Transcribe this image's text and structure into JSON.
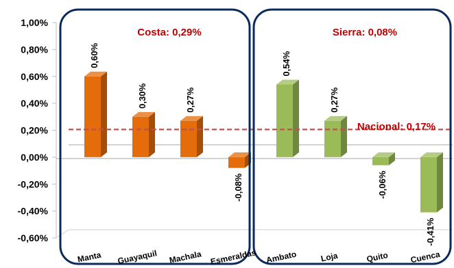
{
  "chart_data": {
    "type": "bar",
    "categories": [
      "Manta",
      "Guayaquil",
      "Machala",
      "Esmeraldas",
      "Ambato",
      "Loja",
      "Quito",
      "Cuenca"
    ],
    "values": [
      0.6,
      0.3,
      0.27,
      -0.08,
      0.54,
      0.27,
      -0.06,
      -0.41
    ],
    "value_labels": [
      "0,60%",
      "0,30%",
      "0,27%",
      "-0,08%",
      "0,54%",
      "0,27%",
      "-0,06%",
      "-0,41%"
    ],
    "y_ticks": [
      1.0,
      0.8,
      0.6,
      0.4,
      0.2,
      0.0,
      -0.2,
      -0.4,
      -0.6
    ],
    "y_tick_labels": [
      "1,00%",
      "0,80%",
      "0,60%",
      "0,40%",
      "0,20%",
      "0,00%",
      "-0,20%",
      "-0,40%",
      "-0,60%"
    ],
    "ylim": [
      -0.6,
      1.0
    ],
    "groups": [
      {
        "label_name": "Costa",
        "label_value": "0,29%",
        "categories": [
          "Manta",
          "Guayaquil",
          "Machala",
          "Esmeraldas"
        ],
        "color": "#e46c0a"
      },
      {
        "label_name": "Sierra",
        "label_value": "0,08%",
        "categories": [
          "Ambato",
          "Loja",
          "Quito",
          "Cuenca"
        ],
        "color": "#9bbb59"
      }
    ],
    "reference_line": {
      "label_name": "Nacional",
      "label_value": "0,17%",
      "value": 0.17,
      "color": "#c0504d"
    },
    "annotation_color": "#c00000",
    "group_frame_color": "#0b2a5c"
  }
}
